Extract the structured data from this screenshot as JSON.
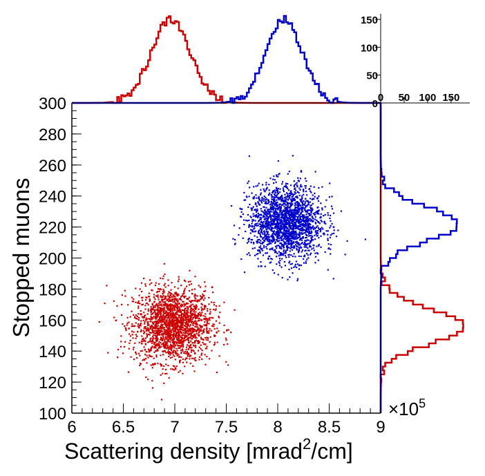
{
  "chart_data": {
    "type": "scatter",
    "title": "",
    "xlabel": "Scattering density [mrad",
    "xlabel_sup": "2",
    "xlabel_tail": "/cm]",
    "ylabel": "Stopped muons",
    "xlim": [
      6,
      9
    ],
    "ylim": [
      100,
      300
    ],
    "x_ticks": [
      "6",
      "6.5",
      "7",
      "7.5",
      "8",
      "8.5",
      "9"
    ],
    "y_ticks": [
      "100",
      "120",
      "140",
      "160",
      "180",
      "200",
      "220",
      "240",
      "260",
      "280",
      "300"
    ],
    "x_multiplier_base": "×10",
    "x_multiplier_exp": "5",
    "series": [
      {
        "name": "red",
        "color": "#cc0000",
        "center": [
          6.98,
          157
        ],
        "spread": [
          0.19,
          12
        ],
        "count": 2000
      },
      {
        "name": "blue",
        "color": "#0000cc",
        "center": [
          8.08,
          223
        ],
        "spread": [
          0.18,
          12
        ],
        "count": 2000
      }
    ],
    "top_histogram": {
      "ylim": [
        0,
        160
      ],
      "y_ticks": [
        "0",
        "50",
        "100",
        "150"
      ],
      "series": [
        {
          "name": "red",
          "color": "#cc0000",
          "peak_x": 6.96,
          "sigma": 0.19,
          "peak": 150
        },
        {
          "name": "blue",
          "color": "#0000cc",
          "peak_x": 8.06,
          "sigma": 0.18,
          "peak": 150
        }
      ]
    },
    "right_histogram": {
      "xlim": [
        0,
        190
      ],
      "x_ticks": [
        "0",
        "50",
        "100",
        "150"
      ],
      "series": [
        {
          "name": "red",
          "color": "#cc0000",
          "peak_y": 156,
          "sigma": 11,
          "peak": 180
        },
        {
          "name": "blue",
          "color": "#0000cc",
          "peak_y": 222,
          "sigma": 11,
          "peak": 165
        }
      ]
    }
  }
}
